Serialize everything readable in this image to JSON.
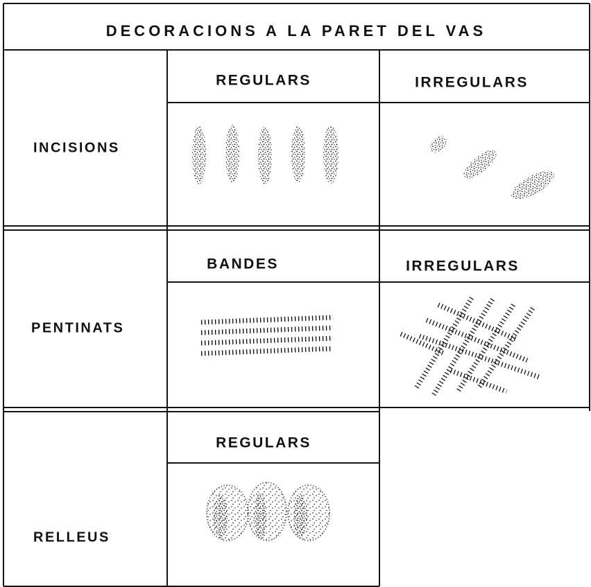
{
  "title": "DECORACIONS A LA PARET DEL VAS",
  "rows": [
    {
      "label": "INCISIONS",
      "columns": [
        {
          "header": "REGULARS"
        },
        {
          "header": "IRREGULARS"
        }
      ]
    },
    {
      "label": "PENTINATS",
      "columns": [
        {
          "header": "BANDES"
        },
        {
          "header": "IRREGULARS"
        }
      ]
    },
    {
      "label": "RELLEUS",
      "columns": [
        {
          "header": "REGULARS"
        }
      ]
    }
  ]
}
